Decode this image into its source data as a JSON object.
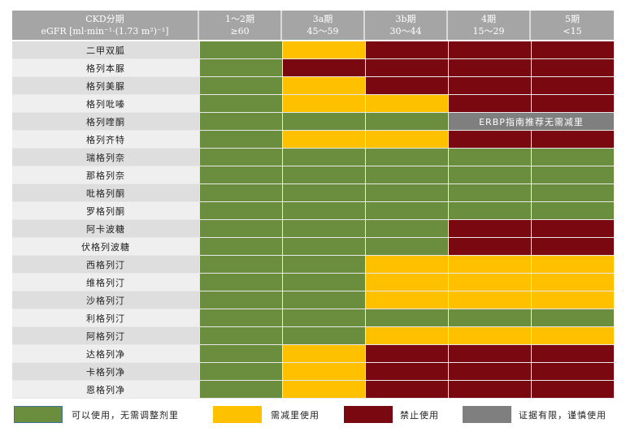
{
  "colors": {
    "green": "#6b8e3e",
    "yellow": "#ffc000",
    "red": "#7a0811",
    "gray": "#7f7f7f",
    "header": "#a5a5a5"
  },
  "header": {
    "name_line1": "CKD分期",
    "name_line2": "eGFR [ml·min⁻¹·(1.73 m²)⁻¹]",
    "stages": [
      {
        "line1": "1～2期",
        "line2": "≥60"
      },
      {
        "line1": "3a期",
        "line2": "45～59"
      },
      {
        "line1": "3b期",
        "line2": "30～44"
      },
      {
        "line1": "4期",
        "line2": "15～29"
      },
      {
        "line1": "5期",
        "line2": "<15"
      }
    ]
  },
  "rows": [
    {
      "name": "二甲双胍",
      "cells": [
        "G",
        "Y",
        "R",
        "R",
        "R"
      ]
    },
    {
      "name": "格列本脲",
      "cells": [
        "G",
        "R",
        "R",
        "R",
        "R"
      ]
    },
    {
      "name": "格列美脲",
      "cells": [
        "G",
        "Y",
        "R",
        "R",
        "R"
      ]
    },
    {
      "name": "格列吡嗪",
      "cells": [
        "G",
        "Y",
        "Y",
        "R",
        "R"
      ]
    },
    {
      "name": "格列喹酮",
      "cells": [
        "G",
        "G",
        "G"
      ],
      "merged_note": "ERBP指南推荐无需减里"
    },
    {
      "name": "格列齐特",
      "cells": [
        "G",
        "Y",
        "Y",
        "R",
        "R"
      ]
    },
    {
      "name": "瑞格列奈",
      "cells": [
        "G",
        "G",
        "G",
        "G",
        "G"
      ]
    },
    {
      "name": "那格列奈",
      "cells": [
        "G",
        "G",
        "G",
        "G",
        "G"
      ]
    },
    {
      "name": "吡格列酮",
      "cells": [
        "G",
        "G",
        "G",
        "G",
        "G"
      ]
    },
    {
      "name": "罗格列酮",
      "cells": [
        "G",
        "G",
        "G",
        "G",
        "G"
      ]
    },
    {
      "name": "阿卡波糖",
      "cells": [
        "G",
        "G",
        "G",
        "R",
        "R"
      ]
    },
    {
      "name": "伏格列波糖",
      "cells": [
        "G",
        "G",
        "G",
        "R",
        "R"
      ]
    },
    {
      "name": "西格列汀",
      "cells": [
        "G",
        "G",
        "Y",
        "Y",
        "Y"
      ]
    },
    {
      "name": "维格列汀",
      "cells": [
        "G",
        "G",
        "Y",
        "Y",
        "Y"
      ]
    },
    {
      "name": "沙格列汀",
      "cells": [
        "G",
        "G",
        "Y",
        "Y",
        "Y"
      ]
    },
    {
      "name": "利格列汀",
      "cells": [
        "G",
        "G",
        "G",
        "G",
        "G"
      ]
    },
    {
      "name": "阿格列汀",
      "cells": [
        "G",
        "G",
        "Y",
        "Y",
        "Y"
      ]
    },
    {
      "name": "达格列净",
      "cells": [
        "G",
        "Y",
        "R",
        "R",
        "R"
      ]
    },
    {
      "name": "卡格列净",
      "cells": [
        "G",
        "Y",
        "R",
        "R",
        "R"
      ]
    },
    {
      "name": "恩格列净",
      "cells": [
        "G",
        "Y",
        "R",
        "R",
        "R"
      ]
    }
  ],
  "legend": [
    {
      "key": "G",
      "label": "可以使用，无需调整剂里",
      "color": "#6b8e3e"
    },
    {
      "key": "Y",
      "label": "需减里使用",
      "color": "#ffc000"
    },
    {
      "key": "R",
      "label": "禁止使用",
      "color": "#7a0811"
    },
    {
      "key": "X",
      "label": "证据有限，谨慎使用",
      "color": "#7f7f7f"
    }
  ],
  "chart_data": {
    "type": "heatmap",
    "title": "",
    "xlabel": "CKD分期 eGFR [ml·min⁻¹·(1.73 m²)⁻¹]",
    "ylabel": "",
    "x": [
      "1～2期 ≥60",
      "3a期 45～59",
      "3b期 30～44",
      "4期 15～29",
      "5期 <15"
    ],
    "y": [
      "二甲双胍",
      "格列本脲",
      "格列美脲",
      "格列吡嗪",
      "格列喹酮",
      "格列齐特",
      "瑞格列奈",
      "那格列奈",
      "吡格列酮",
      "罗格列酮",
      "阿卡波糖",
      "伏格列波糖",
      "西格列汀",
      "维格列汀",
      "沙格列汀",
      "利格列汀",
      "阿格列汀",
      "达格列净",
      "卡格列净",
      "恩格列净"
    ],
    "categories_legend": {
      "G": "可以使用，无需调整剂里",
      "Y": "需减里使用",
      "R": "禁止使用",
      "X": "证据有限，谨慎使用"
    },
    "values": [
      [
        "G",
        "Y",
        "R",
        "R",
        "R"
      ],
      [
        "G",
        "R",
        "R",
        "R",
        "R"
      ],
      [
        "G",
        "Y",
        "R",
        "R",
        "R"
      ],
      [
        "G",
        "Y",
        "Y",
        "R",
        "R"
      ],
      [
        "G",
        "G",
        "G",
        "X",
        "X"
      ],
      [
        "G",
        "Y",
        "Y",
        "R",
        "R"
      ],
      [
        "G",
        "G",
        "G",
        "G",
        "G"
      ],
      [
        "G",
        "G",
        "G",
        "G",
        "G"
      ],
      [
        "G",
        "G",
        "G",
        "G",
        "G"
      ],
      [
        "G",
        "G",
        "G",
        "G",
        "G"
      ],
      [
        "G",
        "G",
        "G",
        "R",
        "R"
      ],
      [
        "G",
        "G",
        "G",
        "R",
        "R"
      ],
      [
        "G",
        "G",
        "Y",
        "Y",
        "Y"
      ],
      [
        "G",
        "G",
        "Y",
        "Y",
        "Y"
      ],
      [
        "G",
        "G",
        "Y",
        "Y",
        "Y"
      ],
      [
        "G",
        "G",
        "G",
        "G",
        "G"
      ],
      [
        "G",
        "G",
        "Y",
        "Y",
        "Y"
      ],
      [
        "G",
        "Y",
        "R",
        "R",
        "R"
      ],
      [
        "G",
        "Y",
        "R",
        "R",
        "R"
      ],
      [
        "G",
        "Y",
        "R",
        "R",
        "R"
      ]
    ],
    "annotations": [
      {
        "row": "格列喹酮",
        "columns": [
          "4期 15～29",
          "5期 <15"
        ],
        "text": "ERBP指南推荐无需减里"
      }
    ],
    "legend_position": "bottom"
  }
}
